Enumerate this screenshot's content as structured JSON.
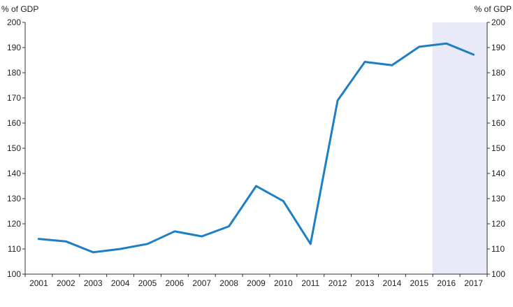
{
  "chart_data": {
    "type": "line",
    "unit_left": "% of GDP",
    "unit_right": "% of GDP",
    "x": [
      "2001",
      "2002",
      "2003",
      "2004",
      "2005",
      "2006",
      "2007",
      "2008",
      "2009",
      "2010",
      "2011",
      "2012",
      "2013",
      "2014",
      "2015",
      "2016",
      "2017"
    ],
    "series": [
      {
        "values": [
          114,
          113,
          108.7,
          110,
          112,
          117,
          115,
          119,
          135,
          129,
          112,
          169,
          184.3,
          183,
          190.3,
          191.6,
          187.2
        ],
        "color": "#1f7fc4"
      }
    ],
    "ylim": [
      100,
      200
    ],
    "yticks": [
      100,
      110,
      120,
      130,
      140,
      150,
      160,
      170,
      180,
      190,
      200
    ],
    "shaded_region": {
      "from": "2016",
      "to": "2017",
      "color": "#e8ebf7"
    },
    "grid": false,
    "legend": "none"
  }
}
